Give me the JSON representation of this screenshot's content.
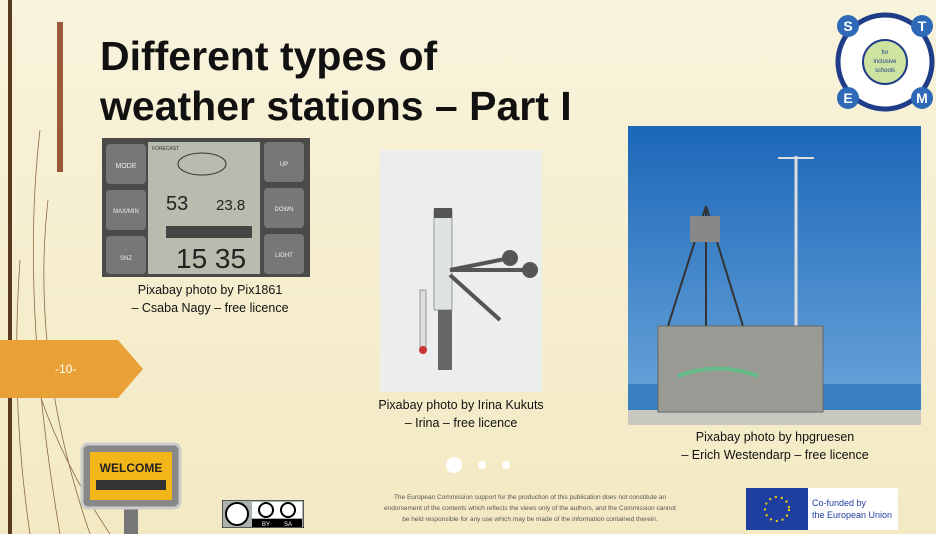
{
  "slide": {
    "title": [
      "Different types of",
      "weather stations – Part I"
    ],
    "page_number": "-10-",
    "logo": {
      "letters": [
        "S",
        "T",
        "E",
        "M"
      ],
      "center": [
        "for",
        "inclusive",
        "schools"
      ]
    },
    "photos": [
      {
        "caption": [
          "Pixabay photo by Pix1861",
          "– Csaba Nagy – free licence"
        ],
        "display": {
          "buttons": [
            "MODE",
            "MAX/MIN",
            "SNZ"
          ],
          "right_buttons": [
            "UP",
            "DOWN",
            "LIGHT"
          ],
          "header": "FORECAST",
          "humidity": "53",
          "temperature": "23.8",
          "time": "15 35"
        }
      },
      {
        "caption": [
          "Pixabay photo by Irina Kukuts",
          "– Irina – free licence"
        ]
      },
      {
        "caption": [
          "Pixabay photo by hpgruesen",
          "– Erich Westendarp – free licence"
        ]
      }
    ],
    "welcome_sign": "WELCOME",
    "cc_badge": [
      "BY",
      "SA"
    ],
    "disclaimer": [
      "The European Commission support for the production of this publication does not constitute an",
      "endorsement of the contents which reflects the views only of the authors, and the Commission cannot",
      "be held responsible for any use which may be made of the information contained therein."
    ],
    "eu_label": [
      "Co-funded by",
      "the European Union"
    ]
  }
}
